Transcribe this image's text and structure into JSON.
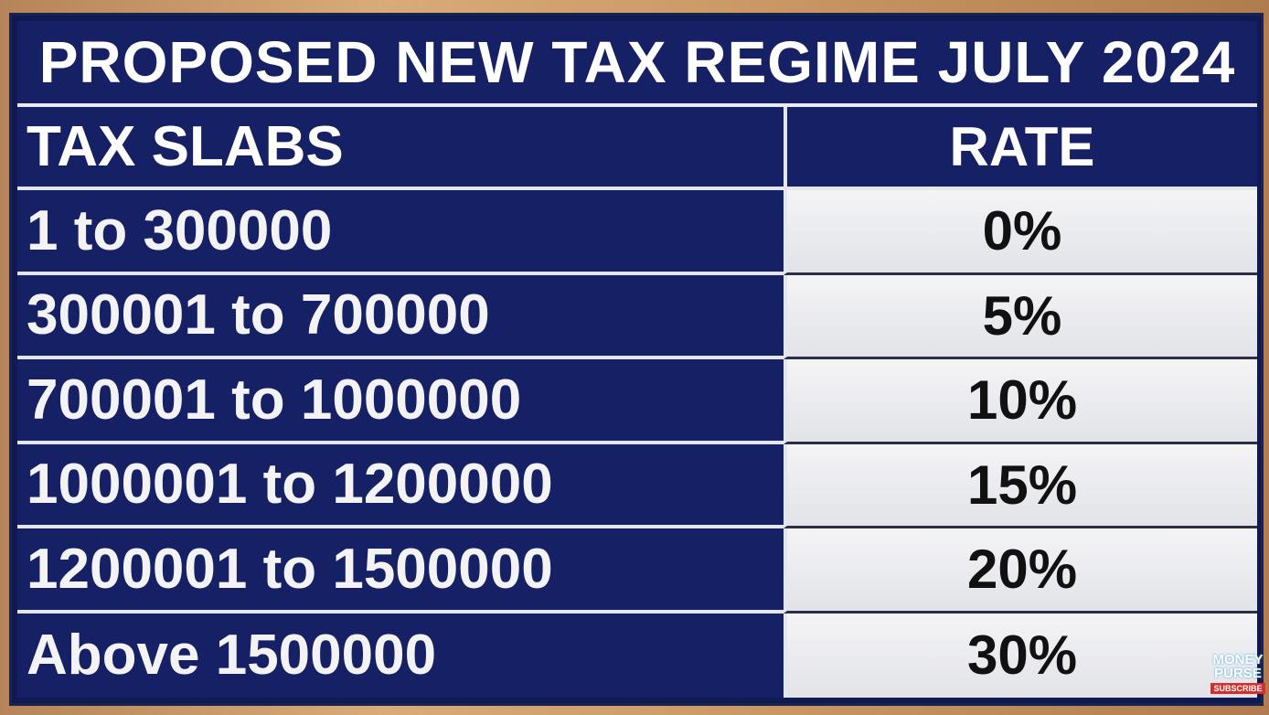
{
  "title": "PROPOSED NEW TAX REGIME JULY 2024",
  "table": {
    "headers": [
      "TAX SLABS",
      "RATE"
    ],
    "rows": [
      {
        "slab": "1 to 300000",
        "rate": "0%"
      },
      {
        "slab": "300001 to 700000",
        "rate": "5%"
      },
      {
        "slab": "700001 to 1000000",
        "rate": "10%"
      },
      {
        "slab": "1000001 to 1200000",
        "rate": "15%"
      },
      {
        "slab": "1200001 to 1500000",
        "rate": "20%"
      },
      {
        "slab": "Above 1500000",
        "rate": "30%"
      }
    ]
  },
  "logo": {
    "line1": "MONEY",
    "line2": "PURSE",
    "subscribe": "SUBSCRIBE"
  },
  "colors": {
    "board_blue": "#162064",
    "rate_cell": "#e9eaee",
    "frame_wood": "#c79a6b"
  }
}
